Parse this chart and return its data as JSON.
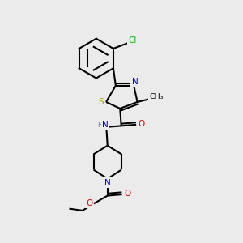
{
  "bg": "#ebebeb",
  "lw": 1.5,
  "dg": 0.09,
  "fs": 7.5,
  "colors": {
    "C": "#000000",
    "N": "#0000dd",
    "O": "#dd0000",
    "S": "#aaaa00",
    "Cl": "#00bb00",
    "H": "#5588aa"
  },
  "xlim": [
    0,
    10
  ],
  "ylim": [
    0,
    10
  ]
}
